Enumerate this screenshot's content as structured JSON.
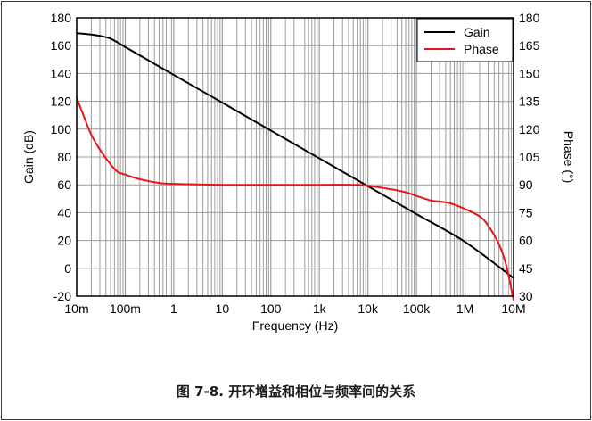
{
  "caption": "图 7-8. 开环增益和相位与频率间的关系",
  "colors": {
    "gain": "#000000",
    "phase": "#e8141b",
    "grid": "#9c9c9c",
    "frame": "#000000"
  },
  "chart_data": {
    "type": "line",
    "xlabel": "Frequency (Hz)",
    "ylabel": "Gain (dB)",
    "y2label": "Phase (°)",
    "xscale": "log",
    "xlim": [
      0.01,
      10000000
    ],
    "ylim": [
      -20,
      180
    ],
    "y2lim": [
      30,
      180
    ],
    "grid": true,
    "legend_position": "top-right",
    "x_ticks": [
      {
        "value": 0.01,
        "label": "10m"
      },
      {
        "value": 0.1,
        "label": "100m"
      },
      {
        "value": 1,
        "label": "1"
      },
      {
        "value": 10,
        "label": "10"
      },
      {
        "value": 100,
        "label": "100"
      },
      {
        "value": 1000,
        "label": "1k"
      },
      {
        "value": 10000,
        "label": "10k"
      },
      {
        "value": 100000,
        "label": "100k"
      },
      {
        "value": 1000000,
        "label": "1M"
      },
      {
        "value": 10000000,
        "label": "10M"
      }
    ],
    "y_ticks": [
      {
        "value": 180,
        "label": "180"
      },
      {
        "value": 160,
        "label": "160"
      },
      {
        "value": 140,
        "label": "140"
      },
      {
        "value": 120,
        "label": "120"
      },
      {
        "value": 100,
        "label": "100"
      },
      {
        "value": 80,
        "label": "80"
      },
      {
        "value": 60,
        "label": "60"
      },
      {
        "value": 40,
        "label": "40"
      },
      {
        "value": 20,
        "label": "20"
      },
      {
        "value": 0,
        "label": "0"
      },
      {
        "value": -20,
        "label": "-20"
      }
    ],
    "y2_ticks": [
      {
        "value": 180,
        "label": "180"
      },
      {
        "value": 165,
        "label": "165"
      },
      {
        "value": 150,
        "label": "150"
      },
      {
        "value": 135,
        "label": "135"
      },
      {
        "value": 120,
        "label": "120"
      },
      {
        "value": 105,
        "label": "105"
      },
      {
        "value": 90,
        "label": "90"
      },
      {
        "value": 75,
        "label": "75"
      },
      {
        "value": 60,
        "label": "60"
      },
      {
        "value": 45,
        "label": "45"
      },
      {
        "value": 30,
        "label": "30"
      }
    ],
    "series": [
      {
        "name": "Gain",
        "axis": "left",
        "x": [
          0.01,
          0.02,
          0.03,
          0.05,
          0.1,
          0.2,
          0.3,
          0.5,
          1,
          10,
          100,
          1000,
          10000,
          100000,
          1000000,
          10000000
        ],
        "y": [
          169,
          168,
          167,
          165,
          159,
          153,
          149.5,
          145,
          139,
          119,
          99,
          79,
          59,
          39,
          19,
          -7
        ]
      },
      {
        "name": "Phase",
        "axis": "right",
        "x": [
          0.01,
          0.015,
          0.02,
          0.03,
          0.05,
          0.07,
          0.1,
          0.2,
          0.5,
          1,
          10,
          100,
          1000,
          5000,
          10000,
          50000,
          100000,
          200000,
          300000,
          500000,
          1000000,
          2000000,
          3000000,
          5000000,
          7000000,
          10000000
        ],
        "y": [
          137,
          125,
          117,
          109,
          101,
          97,
          95.5,
          93,
          91,
          90.5,
          90,
          90,
          90,
          90,
          89.5,
          86.5,
          84,
          81.5,
          81,
          80,
          77,
          73,
          68,
          58,
          47,
          28
        ]
      }
    ]
  }
}
